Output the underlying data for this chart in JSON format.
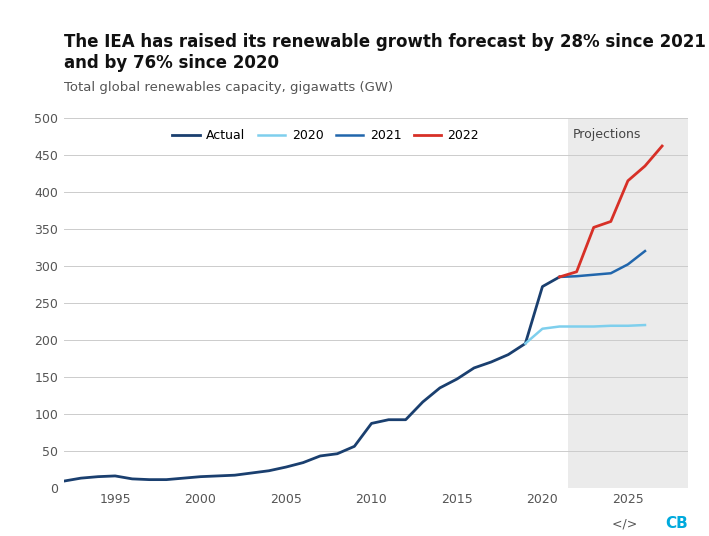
{
  "title": "The IEA has raised its renewable growth forecast by 28% since 2021 and by 76% since 2020",
  "subtitle": "Total global renewables capacity, gigawatts (GW)",
  "background_color": "#ffffff",
  "projection_bg": "#ebebeb",
  "ylim": [
    0,
    500
  ],
  "yticks": [
    0,
    50,
    100,
    150,
    200,
    250,
    300,
    350,
    400,
    450,
    500
  ],
  "xlim_start": 1992,
  "xlim_end": 2028.5,
  "projection_start": 2021.5,
  "projections_label": "Projections",
  "actual": {
    "x": [
      1992,
      1993,
      1994,
      1995,
      1996,
      1997,
      1998,
      1999,
      2000,
      2001,
      2002,
      2003,
      2004,
      2005,
      2006,
      2007,
      2008,
      2009,
      2010,
      2011,
      2012,
      2013,
      2014,
      2015,
      2016,
      2017,
      2018,
      2019,
      2020,
      2021
    ],
    "y": [
      9,
      13,
      15,
      16,
      12,
      11,
      11,
      13,
      15,
      16,
      17,
      20,
      23,
      28,
      34,
      43,
      46,
      56,
      87,
      92,
      92,
      116,
      135,
      147,
      162,
      170,
      180,
      195,
      272,
      285
    ],
    "color": "#1a3f6f",
    "linewidth": 2.0,
    "label": "Actual"
  },
  "forecast_2020": {
    "x": [
      2019,
      2020,
      2021,
      2022,
      2023,
      2024,
      2025,
      2026
    ],
    "y": [
      195,
      215,
      218,
      218,
      218,
      219,
      219,
      220
    ],
    "color": "#7ecfed",
    "linewidth": 1.8,
    "label": "2020"
  },
  "forecast_2021": {
    "x": [
      2021,
      2022,
      2023,
      2024,
      2025,
      2026
    ],
    "y": [
      285,
      286,
      288,
      290,
      302,
      320
    ],
    "color": "#2166ac",
    "linewidth": 1.8,
    "label": "2021"
  },
  "forecast_2022": {
    "x": [
      2021,
      2022,
      2023,
      2024,
      2025,
      2026,
      2027
    ],
    "y": [
      285,
      292,
      352,
      360,
      415,
      435,
      462
    ],
    "color": "#d73027",
    "linewidth": 2.0,
    "label": "2022"
  },
  "legend_entries": [
    "Actual",
    "2020",
    "2021",
    "2022"
  ],
  "legend_colors": [
    "#1a3f6f",
    "#7ecfed",
    "#2166ac",
    "#d73027"
  ],
  "subtitle_fontsize": 9.5,
  "title_fontsize": 12,
  "tick_color": "#555555",
  "grid_color": "#cccccc",
  "cb_color": "#00aadd",
  "xticks": [
    1995,
    2000,
    2005,
    2010,
    2015,
    2020,
    2025
  ]
}
